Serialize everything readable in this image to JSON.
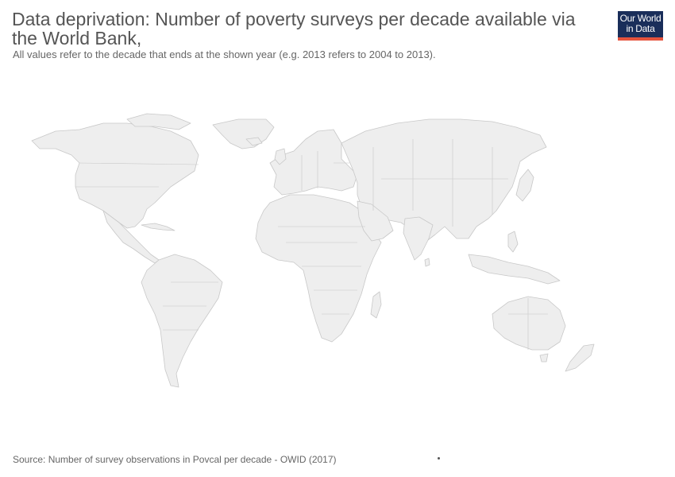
{
  "header": {
    "title": "Data deprivation: Number of poverty surveys per decade available via the World Bank,",
    "subtitle": "All values refer to the decade that ends at the shown year (e.g. 2013 refers to 2004 to 2013)."
  },
  "logo": {
    "line1": "Our World",
    "line2": "in Data"
  },
  "footer": {
    "source": "Source: Number of survey observations in Povcal per decade - OWID (2017)"
  },
  "colors": {
    "land": "#eeeeee",
    "border": "#c8c8c8",
    "logo_bg": "#1a2e5a",
    "logo_accent": "#e5533d"
  }
}
